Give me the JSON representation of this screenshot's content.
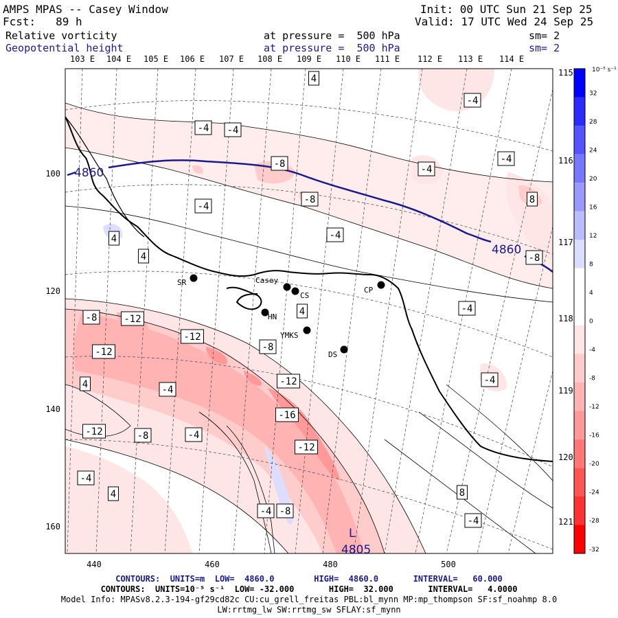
{
  "header": {
    "title": "AMPS MPAS -- Casey Window",
    "forecast": "Fcst:   89 h",
    "init": "Init: 00 UTC Sun 21 Sep 25",
    "valid": "Valid: 17 UTC Wed 24 Sep 25",
    "field1_name": "Relative vorticity",
    "field1_level": "at pressure =  500 hPa",
    "field1_smooth": "sm= 2",
    "field2_name": "Geopotential height",
    "field2_level": "at pressure =  500 hPa",
    "field2_smooth": "sm= 2"
  },
  "axes": {
    "top_lon_labels": [
      "103 E",
      "104 E",
      "105 E",
      "106 E",
      "107 E",
      "108 E",
      "109 E",
      "110 E",
      "111 E",
      "112 E",
      "113 E",
      "114 E"
    ],
    "right_lon_labels": [
      "115 E",
      "116 E",
      "117 E",
      "118 E",
      "119 E",
      "120 E",
      "121 E"
    ],
    "left_y_labels": [
      "100",
      "120",
      "140",
      "160"
    ],
    "bottom_x_labels": [
      "440",
      "460",
      "480",
      "500"
    ]
  },
  "colorbar": {
    "unit_label": "10⁻⁵ s⁻¹",
    "levels": [
      32,
      28,
      24,
      20,
      16,
      12,
      8,
      4,
      0,
      -4,
      -8,
      -12,
      -16,
      -20,
      -24,
      -28,
      -32
    ],
    "colors": [
      "#0000ff",
      "#2b2bff",
      "#5555ff",
      "#7777ff",
      "#9999ff",
      "#bbbbff",
      "#ddddff",
      "#ffffff",
      "#ffffff",
      "#ffe6e6",
      "#ffcccc",
      "#ffb3b3",
      "#ff9999",
      "#ff7777",
      "#ff5555",
      "#ff3333",
      "#ff0000"
    ]
  },
  "stations": [
    {
      "name": "SR"
    },
    {
      "name": "Casey"
    },
    {
      "name": "CS"
    },
    {
      "name": "HN"
    },
    {
      "name": "YMKS"
    },
    {
      "name": "DS"
    },
    {
      "name": "CP"
    }
  ],
  "height_labels": {
    "left": "4860",
    "right": "4860",
    "low_marker": "L",
    "low_value": "4805"
  },
  "vort_labels": [
    "4",
    "-4",
    "-4",
    "-4",
    "-8",
    "-4",
    "-4",
    "-4",
    "-8",
    "4",
    "-4",
    "8",
    "4",
    "-8",
    "-12",
    "-12",
    "-12",
    "-8",
    "4",
    "-4",
    "-4",
    "-12",
    "-16",
    "-12",
    "-12",
    "-8",
    "-4",
    "4",
    "-4",
    "-8",
    "-4",
    "4",
    "8",
    "-4",
    "-4",
    "-8"
  ],
  "footer": {
    "line1": "CONTOURS:  UNITS=m  LOW=  4860.0        HIGH=  4860.0       INTERVAL=   60.000",
    "line2": "CONTOURS:  UNITS=10⁻⁵ s⁻¹  LOW= -32.000       HIGH=  32.000       INTERVAL=   4.0000",
    "line3": "Model Info: MPASv8.2.3-194-gf29cd82c CU:cu_grell_freitas PBL:bl_mynn MP:mp_thompson SF:sf_noahmp 8.0",
    "line4": "LW:rrtmg_lw SW:rrtmg_sw SFLAY:sf_mynn"
  }
}
